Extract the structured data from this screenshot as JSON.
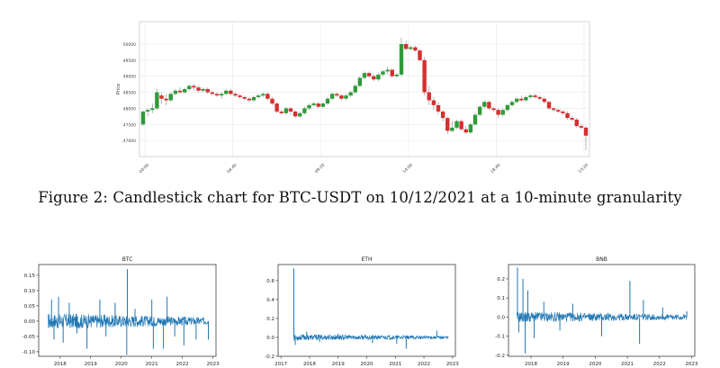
{
  "caption": "Figure 2: Candlestick chart for BTC-USDT on 10/12/2021 at a 10-minute granularity",
  "chart_data": [
    {
      "type": "candlestick",
      "title": "",
      "xlabel": "",
      "ylabel": "Price",
      "ylim": [
        46500,
        50700
      ],
      "yticks": [
        47000,
        47500,
        48000,
        48500,
        49000,
        49500,
        50000
      ],
      "xticks": [
        "00:00",
        "04:40",
        "09:20",
        "14:00",
        "18:40",
        "23:20"
      ],
      "up_color": "#2e9b3a",
      "down_color": "#d62f2f",
      "candles": [
        [
          47500,
          47900,
          47450,
          47950
        ],
        [
          47900,
          47950,
          47750,
          48000
        ],
        [
          47950,
          48000,
          47850,
          48150
        ],
        [
          48000,
          48500,
          47950,
          48600
        ],
        [
          48400,
          48300,
          48150,
          48500
        ],
        [
          48300,
          48250,
          48100,
          48450
        ],
        [
          48250,
          48450,
          48200,
          48500
        ],
        [
          48450,
          48550,
          48400,
          48600
        ],
        [
          48550,
          48500,
          48450,
          48650
        ],
        [
          48500,
          48600,
          48450,
          48650
        ],
        [
          48600,
          48700,
          48550,
          48750
        ],
        [
          48700,
          48650,
          48550,
          48750
        ],
        [
          48650,
          48550,
          48500,
          48700
        ],
        [
          48550,
          48600,
          48500,
          48650
        ],
        [
          48600,
          48500,
          48450,
          48650
        ],
        [
          48500,
          48450,
          48400,
          48550
        ],
        [
          48450,
          48400,
          48350,
          48500
        ],
        [
          48400,
          48450,
          48300,
          48500
        ],
        [
          48450,
          48550,
          48400,
          48600
        ],
        [
          48550,
          48450,
          48400,
          48600
        ],
        [
          48450,
          48400,
          48350,
          48500
        ],
        [
          48400,
          48350,
          48300,
          48450
        ],
        [
          48350,
          48300,
          48250,
          48400
        ],
        [
          48300,
          48250,
          48200,
          48350
        ],
        [
          48250,
          48350,
          48200,
          48400
        ],
        [
          48350,
          48400,
          48300,
          48450
        ],
        [
          48400,
          48450,
          48350,
          48500
        ],
        [
          48450,
          48300,
          48250,
          48500
        ],
        [
          48300,
          48150,
          48100,
          48350
        ],
        [
          48150,
          47900,
          47850,
          48200
        ],
        [
          47900,
          47850,
          47800,
          47950
        ],
        [
          47850,
          48000,
          47800,
          48050
        ],
        [
          48000,
          47900,
          47800,
          48050
        ],
        [
          47900,
          47750,
          47700,
          47950
        ],
        [
          47750,
          47850,
          47700,
          47900
        ],
        [
          47850,
          48000,
          47800,
          48050
        ],
        [
          48000,
          48100,
          47950,
          48150
        ],
        [
          48100,
          48150,
          48050,
          48200
        ],
        [
          48150,
          48050,
          48000,
          48200
        ],
        [
          48050,
          48150,
          48000,
          48200
        ],
        [
          48150,
          48300,
          48100,
          48350
        ],
        [
          48300,
          48450,
          48250,
          48500
        ],
        [
          48450,
          48400,
          48350,
          48500
        ],
        [
          48400,
          48300,
          48250,
          48450
        ],
        [
          48300,
          48400,
          48250,
          48450
        ],
        [
          48400,
          48500,
          48350,
          48550
        ],
        [
          48500,
          48700,
          48450,
          48750
        ],
        [
          48700,
          48950,
          48650,
          49000
        ],
        [
          48950,
          49100,
          48900,
          49150
        ],
        [
          49100,
          49000,
          48950,
          49150
        ],
        [
          49000,
          48900,
          48850,
          49050
        ],
        [
          48900,
          49050,
          48850,
          49100
        ],
        [
          49050,
          49150,
          49000,
          49200
        ],
        [
          49150,
          49200,
          49050,
          49300
        ],
        [
          49200,
          49000,
          48950,
          49250
        ],
        [
          49000,
          49050,
          48950,
          49100
        ],
        [
          49050,
          50000,
          49000,
          50200
        ],
        [
          50000,
          49850,
          49800,
          50100
        ],
        [
          49850,
          49900,
          49800,
          49950
        ],
        [
          49900,
          49800,
          49750,
          49950
        ],
        [
          49800,
          49500,
          49450,
          49850
        ],
        [
          49500,
          48500,
          48400,
          49600
        ],
        [
          48500,
          48250,
          48100,
          48700
        ],
        [
          48250,
          48100,
          47950,
          48350
        ],
        [
          48100,
          47900,
          47800,
          48200
        ],
        [
          47900,
          47700,
          47600,
          47950
        ],
        [
          47700,
          47300,
          47200,
          47750
        ],
        [
          47300,
          47400,
          47250,
          47600
        ],
        [
          47400,
          47600,
          47350,
          47650
        ],
        [
          47600,
          47350,
          47300,
          47650
        ],
        [
          47350,
          47250,
          47200,
          47450
        ],
        [
          47250,
          47500,
          47200,
          47550
        ],
        [
          47500,
          47800,
          47450,
          47850
        ],
        [
          47800,
          48050,
          47750,
          48100
        ],
        [
          48050,
          48200,
          48000,
          48250
        ],
        [
          48200,
          48000,
          47950,
          48250
        ],
        [
          48000,
          47950,
          47900,
          48050
        ],
        [
          47950,
          47800,
          47700,
          48000
        ],
        [
          47800,
          47950,
          47750,
          48000
        ],
        [
          47950,
          48100,
          47900,
          48150
        ],
        [
          48100,
          48200,
          48050,
          48250
        ],
        [
          48200,
          48300,
          48150,
          48350
        ],
        [
          48300,
          48250,
          48200,
          48400
        ],
        [
          48250,
          48350,
          48200,
          48400
        ],
        [
          48350,
          48400,
          48300,
          48450
        ],
        [
          48400,
          48350,
          48300,
          48450
        ],
        [
          48350,
          48300,
          48250,
          48400
        ],
        [
          48300,
          48200,
          48150,
          48350
        ],
        [
          48200,
          48000,
          47950,
          48250
        ],
        [
          48000,
          47950,
          47900,
          48050
        ],
        [
          47950,
          47900,
          47850,
          48000
        ],
        [
          47900,
          47850,
          47800,
          47950
        ],
        [
          47850,
          47700,
          47650,
          47900
        ],
        [
          47700,
          47650,
          47600,
          47750
        ],
        [
          47650,
          47450,
          47400,
          47700
        ],
        [
          47450,
          47400,
          47350,
          47500
        ],
        [
          47400,
          47150,
          46700,
          47450
        ]
      ]
    },
    {
      "type": "line",
      "title": "BTC",
      "xlabel": "",
      "ylabel": "",
      "ylim": [
        -0.115,
        0.185
      ],
      "yticks": [
        -0.1,
        -0.05,
        0.0,
        0.05,
        0.1,
        0.15
      ],
      "ytick_labels": [
        "-0.10",
        "-0.05",
        "0.00",
        "0.05",
        "0.10",
        "0.15"
      ],
      "xlim": [
        2017.3,
        2023.1
      ],
      "xticks": [
        2018,
        2019,
        2020,
        2021,
        2022,
        2023
      ],
      "xtick_labels": [
        "2018",
        "2019",
        "2020",
        "2021",
        "2022",
        "2023"
      ],
      "color": "#1f77b4",
      "x_range": [
        2017.6,
        2022.85
      ],
      "noise": 0.015,
      "spikes": [
        {
          "x": 2017.72,
          "y": 0.07
        },
        {
          "x": 2017.8,
          "y": -0.06
        },
        {
          "x": 2017.95,
          "y": 0.08
        },
        {
          "x": 2018.1,
          "y": -0.07
        },
        {
          "x": 2018.3,
          "y": 0.06
        },
        {
          "x": 2018.55,
          "y": -0.04
        },
        {
          "x": 2018.88,
          "y": -0.09
        },
        {
          "x": 2019.3,
          "y": 0.07
        },
        {
          "x": 2019.5,
          "y": -0.05
        },
        {
          "x": 2019.8,
          "y": 0.06
        },
        {
          "x": 2020.18,
          "y": -0.11
        },
        {
          "x": 2020.2,
          "y": 0.17
        },
        {
          "x": 2020.45,
          "y": 0.04
        },
        {
          "x": 2021.0,
          "y": 0.07
        },
        {
          "x": 2021.05,
          "y": -0.09
        },
        {
          "x": 2021.38,
          "y": -0.09
        },
        {
          "x": 2021.5,
          "y": 0.08
        },
        {
          "x": 2021.75,
          "y": -0.05
        },
        {
          "x": 2022.05,
          "y": -0.08
        },
        {
          "x": 2022.45,
          "y": -0.06
        },
        {
          "x": 2022.85,
          "y": -0.06
        }
      ]
    },
    {
      "type": "line",
      "title": "ETH",
      "xlabel": "",
      "ylabel": "",
      "ylim": [
        -0.2,
        0.77
      ],
      "yticks": [
        -0.2,
        0.0,
        0.2,
        0.4,
        0.6
      ],
      "ytick_labels": [
        "-0.2",
        "0.0",
        "0.2",
        "0.4",
        "0.6"
      ],
      "xlim": [
        2016.9,
        2023.1
      ],
      "xticks": [
        2017,
        2018,
        2019,
        2020,
        2021,
        2022,
        2023
      ],
      "xtick_labels": [
        "2017",
        "2018",
        "2019",
        "2020",
        "2021",
        "2022",
        "2023"
      ],
      "color": "#1f77b4",
      "x_range": [
        2017.45,
        2022.85
      ],
      "noise": 0.018,
      "spikes": [
        {
          "x": 2017.45,
          "y": 0.73
        },
        {
          "x": 2017.5,
          "y": -0.08
        },
        {
          "x": 2017.9,
          "y": 0.06
        },
        {
          "x": 2018.35,
          "y": -0.05
        },
        {
          "x": 2019.0,
          "y": 0.04
        },
        {
          "x": 2020.2,
          "y": -0.06
        },
        {
          "x": 2021.05,
          "y": -0.07
        },
        {
          "x": 2021.38,
          "y": -0.12
        },
        {
          "x": 2022.45,
          "y": 0.07
        }
      ]
    },
    {
      "type": "line",
      "title": "BNB",
      "xlabel": "",
      "ylabel": "",
      "ylim": [
        -0.205,
        0.275
      ],
      "yticks": [
        -0.2,
        -0.1,
        0.0,
        0.1,
        0.2
      ],
      "ytick_labels": [
        "-0.2",
        "-0.1",
        "0.0",
        "0.1",
        "0.2"
      ],
      "xlim": [
        2017.3,
        2023.1
      ],
      "xticks": [
        2018,
        2019,
        2020,
        2021,
        2022,
        2023
      ],
      "xtick_labels": [
        "2018",
        "2019",
        "2020",
        "2021",
        "2022",
        "2023"
      ],
      "color": "#1f77b4",
      "x_range": [
        2017.55,
        2022.85
      ],
      "noise": 0.016,
      "spikes": [
        {
          "x": 2017.58,
          "y": 0.26
        },
        {
          "x": 2017.62,
          "y": -0.08
        },
        {
          "x": 2017.75,
          "y": 0.2
        },
        {
          "x": 2017.82,
          "y": -0.19
        },
        {
          "x": 2017.9,
          "y": 0.14
        },
        {
          "x": 2018.1,
          "y": -0.11
        },
        {
          "x": 2018.4,
          "y": 0.08
        },
        {
          "x": 2018.9,
          "y": -0.07
        },
        {
          "x": 2019.3,
          "y": 0.07
        },
        {
          "x": 2020.2,
          "y": -0.1
        },
        {
          "x": 2021.08,
          "y": 0.19
        },
        {
          "x": 2021.38,
          "y": -0.14
        },
        {
          "x": 2021.5,
          "y": 0.09
        },
        {
          "x": 2022.1,
          "y": 0.05
        },
        {
          "x": 2022.85,
          "y": 0.03
        }
      ]
    }
  ]
}
